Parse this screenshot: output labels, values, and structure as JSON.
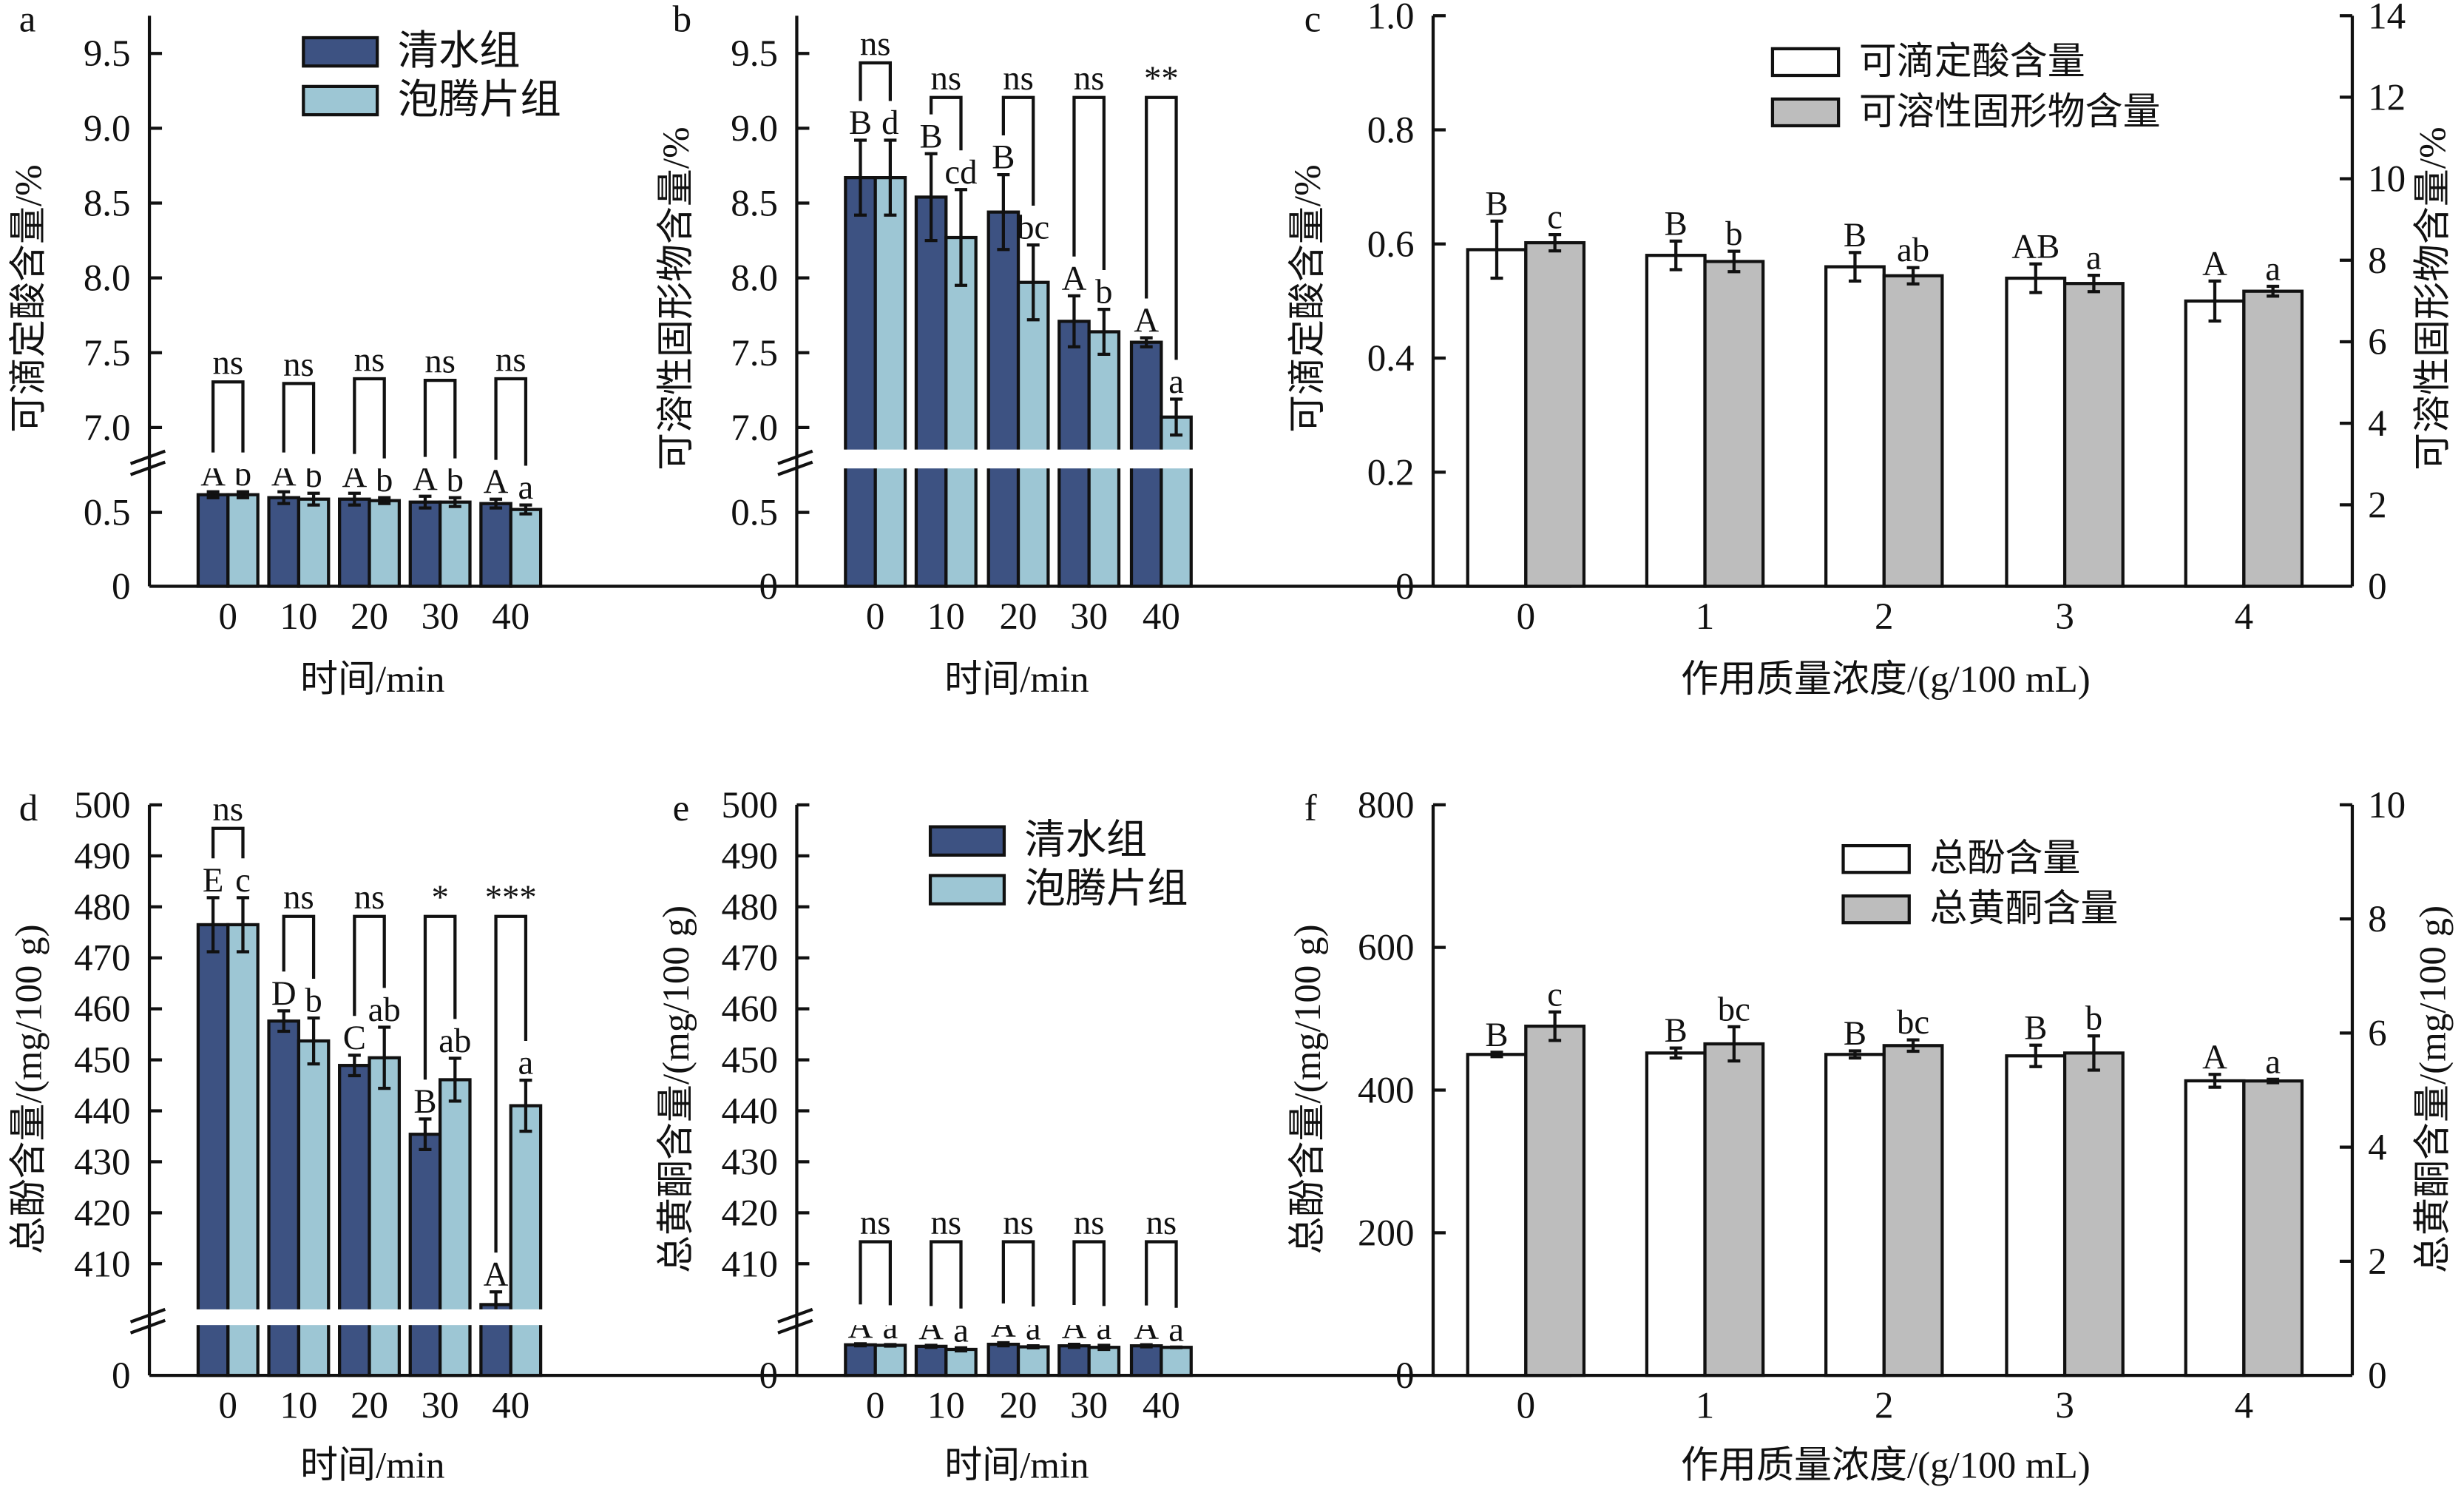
{
  "chart_data": [
    {
      "panel_label": "a",
      "type": "bar",
      "categories": [
        "0",
        "10",
        "20",
        "30",
        "40"
      ],
      "xlabel": "时间/min",
      "ylabel": "可滴定酸含量/%",
      "yticks": [
        "0",
        "0.5",
        "7.0",
        "7.5",
        "8.0",
        "8.5",
        "9.0",
        "9.5"
      ],
      "axis_break": [
        0.8,
        6.85
      ],
      "ylim": [
        0,
        9.7
      ],
      "legend_position": "top-right",
      "series": [
        {
          "name": "清水组",
          "color": "#3d5282",
          "values": [
            0.62,
            0.6,
            0.59,
            0.57,
            0.56
          ],
          "errors": [
            0.02,
            0.04,
            0.04,
            0.04,
            0.03
          ],
          "letters": [
            "A",
            "A",
            "A",
            "A",
            "A"
          ]
        },
        {
          "name": "泡腾片组",
          "color": "#9dc6d4",
          "values": [
            0.62,
            0.59,
            0.58,
            0.57,
            0.52
          ],
          "errors": [
            0.02,
            0.04,
            0.02,
            0.03,
            0.03
          ],
          "letters": [
            "b",
            "b",
            "b",
            "b",
            "a"
          ]
        }
      ],
      "comparisons": [
        "ns",
        "ns",
        "ns",
        "ns",
        "ns"
      ]
    },
    {
      "panel_label": "b",
      "type": "bar",
      "categories": [
        "0",
        "10",
        "20",
        "30",
        "40"
      ],
      "xlabel": "时间/min",
      "ylabel": "可溶性固形物含量/%",
      "yticks": [
        "0",
        "0.5",
        "7.0",
        "7.5",
        "8.0",
        "8.5",
        "9.0",
        "9.5"
      ],
      "axis_break": [
        0.8,
        6.85
      ],
      "ylim": [
        0,
        9.7
      ],
      "series": [
        {
          "name": "清水组",
          "color": "#3d5282",
          "values": [
            8.67,
            8.54,
            8.44,
            7.71,
            7.57
          ],
          "errors": [
            0.25,
            0.29,
            0.25,
            0.17,
            0.03
          ],
          "letters": [
            "B",
            "B",
            "B",
            "A",
            "A"
          ]
        },
        {
          "name": "泡腾片组",
          "color": "#9dc6d4",
          "values": [
            8.67,
            8.27,
            7.97,
            7.64,
            7.07
          ],
          "errors": [
            0.25,
            0.32,
            0.25,
            0.15,
            0.12
          ],
          "letters": [
            "d",
            "cd",
            "bc",
            "b",
            "a"
          ]
        }
      ],
      "comparisons": [
        "ns",
        "ns",
        "ns",
        "ns",
        "**"
      ]
    },
    {
      "panel_label": "c",
      "type": "bar",
      "categories": [
        "0",
        "1",
        "2",
        "3",
        "4"
      ],
      "xlabel": "作用质量浓度/(g/100 mL)",
      "ylabel": "可滴定酸含量/%",
      "y2label": "可溶性固形物含量/%",
      "yticks": [
        "0",
        "0.2",
        "0.4",
        "0.6",
        "0.8",
        "1.0"
      ],
      "ylim": [
        0,
        1.0
      ],
      "y2ticks": [
        "0",
        "2",
        "4",
        "6",
        "8",
        "10",
        "12",
        "14"
      ],
      "y2lim": [
        0,
        14
      ],
      "legend_position": "top-right",
      "series": [
        {
          "name": "可滴定酸含量",
          "axis": "left",
          "color": "#ffffff",
          "values": [
            0.59,
            0.58,
            0.56,
            0.54,
            0.5
          ],
          "errors": [
            0.05,
            0.025,
            0.025,
            0.025,
            0.035
          ],
          "letters": [
            "B",
            "B",
            "B",
            "AB",
            "A"
          ]
        },
        {
          "name": "可溶性固形物含量",
          "axis": "right",
          "color": "#bdbdbd",
          "values": [
            8.43,
            7.97,
            7.62,
            7.43,
            7.24
          ],
          "errors": [
            0.2,
            0.25,
            0.2,
            0.2,
            0.12
          ],
          "letters": [
            "c",
            "b",
            "ab",
            "a",
            "a"
          ]
        }
      ]
    },
    {
      "panel_label": "d",
      "type": "bar",
      "categories": [
        "0",
        "10",
        "20",
        "30",
        "40"
      ],
      "xlabel": "时间/min",
      "ylabel": "总酚含量/(mg/100 g)",
      "yticks": [
        "0",
        "410",
        "420",
        "430",
        "440",
        "450",
        "460",
        "470",
        "480",
        "490",
        "500"
      ],
      "axis_break": [
        11,
        401
      ],
      "ylim": [
        0,
        500
      ],
      "series": [
        {
          "name": "清水组",
          "color": "#3d5282",
          "values": [
            476.5,
            457.6,
            448.9,
            435.4,
            402.0
          ],
          "errors": [
            5.3,
            2.0,
            2.0,
            3.0,
            2.5
          ],
          "letters": [
            "E",
            "D",
            "C",
            "B",
            "A"
          ]
        },
        {
          "name": "泡腾片组",
          "color": "#9dc6d4",
          "values": [
            476.5,
            453.7,
            450.4,
            446.1,
            441.0
          ],
          "errors": [
            5.3,
            4.5,
            6.0,
            4.2,
            5.0
          ],
          "letters": [
            "c",
            "b",
            "ab",
            "ab",
            "a"
          ]
        }
      ],
      "comparisons": [
        "ns",
        "ns",
        "ns",
        "*",
        "***"
      ]
    },
    {
      "panel_label": "e",
      "type": "bar",
      "categories": [
        "0",
        "10",
        "20",
        "30",
        "40"
      ],
      "xlabel": "时间/min",
      "ylabel": "总黄酮含量/(mg/100 g)",
      "yticks": [
        "0",
        "410",
        "420",
        "430",
        "440",
        "450",
        "460",
        "470",
        "480",
        "490",
        "500"
      ],
      "axis_break": [
        11,
        401
      ],
      "ylim": [
        0,
        500
      ],
      "legend_position": "top-right",
      "series": [
        {
          "name": "清水组",
          "color": "#3d5282",
          "values": [
            6.0,
            5.7,
            6.1,
            5.8,
            5.8
          ],
          "errors": [
            0.2,
            0.2,
            0.3,
            0.3,
            0.2
          ],
          "letters": [
            "A",
            "A",
            "A",
            "A",
            "A"
          ]
        },
        {
          "name": "泡腾片组",
          "color": "#9dc6d4",
          "values": [
            5.9,
            5.1,
            5.6,
            5.5,
            5.5
          ],
          "errors": [
            0.15,
            0.3,
            0.2,
            0.4,
            0.05
          ],
          "letters": [
            "a",
            "a",
            "a",
            "a",
            "a"
          ]
        }
      ],
      "comparisons": [
        "ns",
        "ns",
        "ns",
        "ns",
        "ns"
      ]
    },
    {
      "panel_label": "f",
      "type": "bar",
      "categories": [
        "0",
        "1",
        "2",
        "3",
        "4"
      ],
      "xlabel": "作用质量浓度/(g/100 mL)",
      "ylabel": "总酚含量/(mg/100 g)",
      "y2label": "总黄酮含量/(mg/100 g)",
      "yticks": [
        "0",
        "200",
        "400",
        "600",
        "800"
      ],
      "ylim": [
        0,
        800
      ],
      "y2ticks": [
        "0",
        "2",
        "4",
        "6",
        "8",
        "10"
      ],
      "y2lim": [
        0,
        10
      ],
      "legend_position": "top-right",
      "series": [
        {
          "name": "总酚含量",
          "axis": "left",
          "color": "#ffffff",
          "values": [
            450,
            452,
            450,
            448,
            413
          ],
          "errors": [
            3,
            7,
            5,
            15,
            9
          ],
          "letters": [
            "B",
            "B",
            "B",
            "B",
            "A"
          ]
        },
        {
          "name": "总黄酮含量",
          "axis": "right",
          "color": "#bdbdbd",
          "values": [
            6.12,
            5.81,
            5.78,
            5.65,
            5.16
          ],
          "errors": [
            0.25,
            0.3,
            0.1,
            0.3,
            0.03
          ],
          "letters": [
            "c",
            "bc",
            "bc",
            "b",
            "a"
          ]
        }
      ]
    }
  ]
}
